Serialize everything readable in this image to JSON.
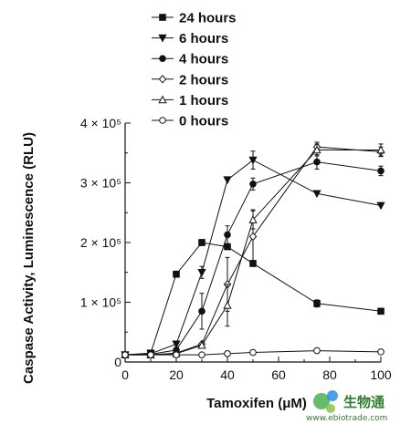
{
  "chart_data": {
    "type": "line",
    "xlabel": "Tamoxifen (μM)",
    "ylabel": "Caspase Activity, Luminescence (RLU)",
    "xlim": [
      0,
      100
    ],
    "ylim": [
      0,
      400000
    ],
    "x_ticks": [
      0,
      20,
      40,
      60,
      80,
      100
    ],
    "x_tick_labels": [
      "0",
      "20",
      "40",
      "60",
      "80",
      "100"
    ],
    "y_ticks": [
      0,
      100000,
      200000,
      300000,
      400000
    ],
    "y_tick_labels": [
      "0",
      "1 × 10⁵",
      "2 × 10⁵",
      "3 × 10⁵",
      "4 × 10⁵"
    ],
    "legend_position": "top",
    "series": [
      {
        "name": "24 hours",
        "marker": "square-filled",
        "x": [
          0,
          10,
          20,
          30,
          40,
          50,
          75,
          100
        ],
        "y": [
          12000,
          15000,
          147000,
          200000,
          193000,
          165000,
          98000,
          85000
        ],
        "err": [
          0,
          0,
          5000,
          5000,
          0,
          5000,
          6000,
          0
        ]
      },
      {
        "name": "6 hours",
        "marker": "triangle-down-filled",
        "x": [
          0,
          10,
          20,
          30,
          40,
          50,
          75,
          100
        ],
        "y": [
          12000,
          14000,
          30000,
          150000,
          305000,
          338000,
          282000,
          262000
        ],
        "err": [
          0,
          0,
          0,
          10000,
          0,
          15000,
          0,
          0
        ]
      },
      {
        "name": "4 hours",
        "marker": "circle-filled",
        "x": [
          0,
          10,
          20,
          30,
          40,
          50,
          75,
          100
        ],
        "y": [
          12000,
          13000,
          20000,
          85000,
          213000,
          298000,
          335000,
          320000
        ],
        "err": [
          0,
          0,
          0,
          30000,
          15000,
          10000,
          12000,
          8000
        ]
      },
      {
        "name": "2 hours",
        "marker": "diamond-open",
        "x": [
          0,
          10,
          20,
          30,
          40,
          50,
          75,
          100
        ],
        "y": [
          12000,
          12000,
          15000,
          30000,
          130000,
          210000,
          360000,
          352000
        ],
        "err": [
          0,
          0,
          0,
          0,
          45000,
          45000,
          8000,
          8000
        ]
      },
      {
        "name": "1 hours",
        "marker": "triangle-up-open",
        "x": [
          0,
          10,
          20,
          30,
          40,
          50,
          75,
          100
        ],
        "y": [
          12000,
          12000,
          14000,
          28000,
          95000,
          238000,
          355000,
          355000
        ],
        "err": [
          0,
          0,
          0,
          0,
          35000,
          15000,
          10000,
          10000
        ]
      },
      {
        "name": "0 hours",
        "marker": "circle-open",
        "x": [
          0,
          10,
          20,
          30,
          40,
          50,
          75,
          100
        ],
        "y": [
          12000,
          12000,
          12000,
          12000,
          14000,
          16000,
          19000,
          17000
        ],
        "err": [
          0,
          0,
          0,
          0,
          0,
          0,
          0,
          0
        ]
      }
    ]
  },
  "watermark": {
    "logo_text": "生物通",
    "site_text": "www.ebiotrade.com"
  }
}
